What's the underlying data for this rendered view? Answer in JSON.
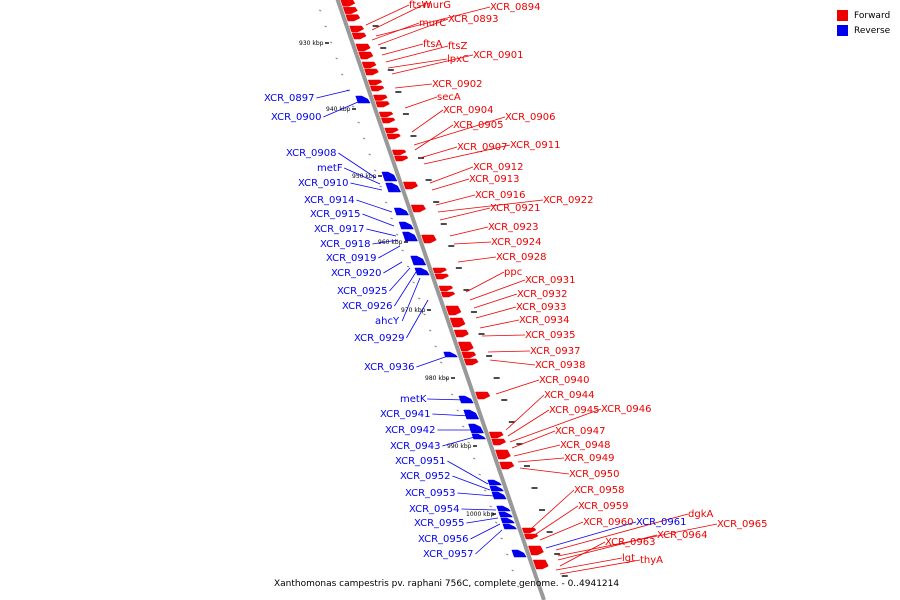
{
  "colors": {
    "forward": "#ee0000",
    "reverse": "#0000ee",
    "backbone": "#999999"
  },
  "legend": {
    "forward_label": "Forward",
    "reverse_label": "Reverse"
  },
  "caption": "Xanthomonas campestris pv. raphani 756C, complete genome. - 0..4941214",
  "axis_labels": [
    "930 kbp",
    "940 kbp",
    "950 kbp",
    "960 kbp",
    "970 kbp",
    "980 kbp",
    "990 kbp",
    "1000 kbp"
  ],
  "forward_genes": [
    "ftsW",
    "murG",
    "XCR_0894",
    "murC",
    "XCR_0893",
    "ftsA",
    "ftsZ",
    "lpxC",
    "XCR_0901",
    "XCR_0902",
    "secA",
    "XCR_0904",
    "XCR_0906",
    "XCR_0905",
    "XCR_0907",
    "XCR_0911",
    "XCR_0912",
    "XCR_0913",
    "XCR_0916",
    "XCR_0922",
    "XCR_0921",
    "XCR_0923",
    "XCR_0924",
    "XCR_0928",
    "ppc",
    "XCR_0931",
    "XCR_0932",
    "XCR_0933",
    "XCR_0934",
    "XCR_0935",
    "XCR_0937",
    "XCR_0938",
    "XCR_0940",
    "XCR_0944",
    "XCR_0945",
    "XCR_0946",
    "XCR_0947",
    "XCR_0948",
    "XCR_0949",
    "XCR_0950",
    "XCR_0958",
    "XCR_0959",
    "XCR_0960",
    "dgkA",
    "XCR_0965",
    "XCR_0964",
    "XCR_0963",
    "lgt",
    "thyA"
  ],
  "reverse_genes": [
    "XCR_0897",
    "XCR_0900",
    "XCR_0908",
    "metF",
    "XCR_0910",
    "XCR_0914",
    "XCR_0915",
    "XCR_0917",
    "XCR_0918",
    "XCR_0919",
    "XCR_0920",
    "XCR_0925",
    "XCR_0926",
    "ahcY",
    "XCR_0929",
    "XCR_0936",
    "metK",
    "XCR_0941",
    "XCR_0942",
    "XCR_0943",
    "XCR_0951",
    "XCR_0952",
    "XCR_0953",
    "XCR_0954",
    "XCR_0955",
    "XCR_0956",
    "XCR_0957",
    "XCR_0961"
  ]
}
